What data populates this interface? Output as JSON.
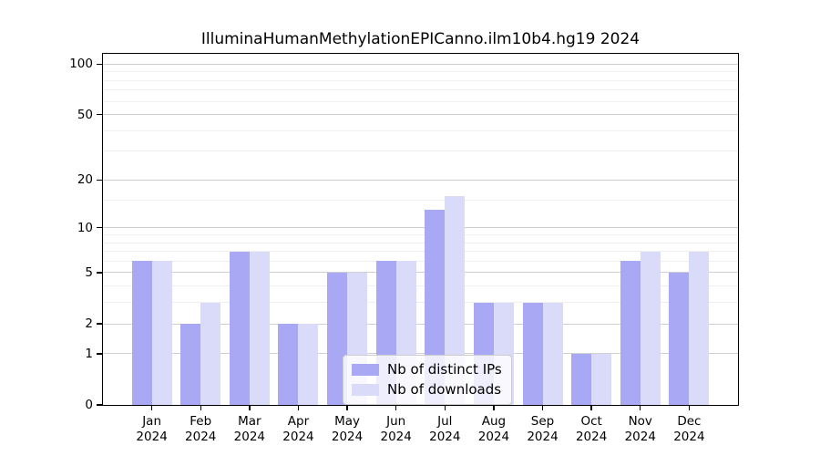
{
  "title": "IlluminaHumanMethylationEPICanno.ilm10b4.hg19 2024",
  "chart_data": {
    "type": "bar",
    "title": "IlluminaHumanMethylationEPICanno.ilm10b4.hg19 2024",
    "categories": [
      "Jan",
      "Feb",
      "Mar",
      "Apr",
      "May",
      "Jun",
      "Jul",
      "Aug",
      "Sep",
      "Oct",
      "Nov",
      "Dec"
    ],
    "x_year": "2024",
    "series": [
      {
        "name": "Nb of distinct IPs",
        "color": "#a8a8f5",
        "values": [
          6,
          2,
          7,
          2,
          5,
          6,
          13,
          3,
          3,
          1,
          6,
          5
        ]
      },
      {
        "name": "Nb of downloads",
        "color": "#dadaf9",
        "values": [
          6,
          3,
          7,
          2,
          5,
          6,
          16,
          3,
          3,
          1,
          7,
          7
        ]
      }
    ],
    "xlabel": "",
    "ylabel": "",
    "y_scale": "log1p",
    "ylim": [
      0,
      115
    ],
    "y_ticks": [
      0,
      1,
      2,
      5,
      10,
      20,
      50,
      100
    ],
    "y_minor_ticks": [
      3,
      4,
      6,
      7,
      8,
      9,
      15,
      30,
      40,
      60,
      70,
      80,
      90
    ],
    "grid": true,
    "legend_position": "inside-bottom-center",
    "colors": {
      "major_grid": "#cfcfcf",
      "minor_grid": "#efefef",
      "axis": "#000000",
      "legend_border": "#cccccc",
      "legend_bg": "rgba(255,255,255,0.8)",
      "background": "#ffffff"
    }
  }
}
